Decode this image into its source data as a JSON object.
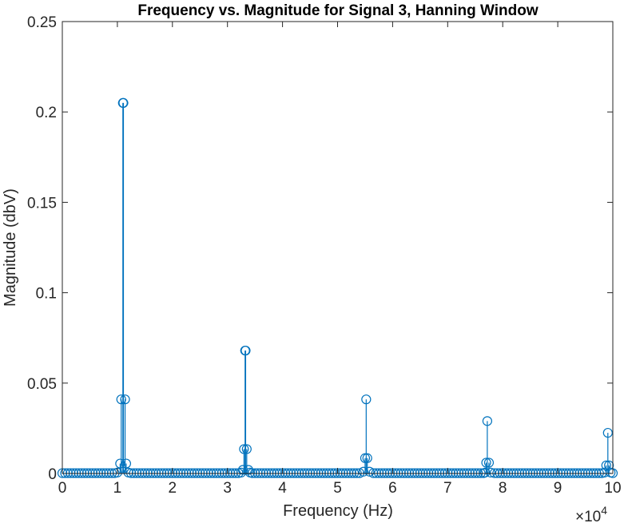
{
  "chart_data": {
    "type": "stem",
    "title": "Frequency vs. Magnitude for Signal 3, Hanning Window",
    "xlabel": "Frequency (Hz)",
    "ylabel": "Magnitude (dbV)",
    "x_exponent_label": "×10",
    "x_exponent_power": "4",
    "xlim": [
      0,
      100000
    ],
    "ylim": [
      0,
      0.25
    ],
    "xticks": [
      0,
      10000,
      20000,
      30000,
      40000,
      50000,
      60000,
      70000,
      80000,
      90000,
      100000
    ],
    "xtick_labels": [
      "0",
      "1",
      "2",
      "3",
      "4",
      "5",
      "6",
      "7",
      "8",
      "9",
      "10"
    ],
    "yticks": [
      0,
      0.05,
      0.1,
      0.15,
      0.2,
      0.25
    ],
    "ytick_labels": [
      "0",
      "0.05",
      "0.1",
      "0.15",
      "0.2",
      "0.25"
    ],
    "grid": false,
    "color": "#0072BD",
    "baseline_spacing": 500,
    "series": [
      {
        "points": [
          [
            10000,
            0.0005
          ],
          [
            10500,
            0.0055
          ],
          [
            10700,
            0.041
          ],
          [
            11000,
            0.205
          ],
          [
            11100,
            0.205
          ],
          [
            11400,
            0.041
          ],
          [
            11600,
            0.0055
          ],
          [
            12000,
            0.0005
          ],
          [
            32500,
            0.0005
          ],
          [
            32800,
            0.002
          ],
          [
            33000,
            0.0135
          ],
          [
            33200,
            0.068
          ],
          [
            33300,
            0.068
          ],
          [
            33500,
            0.0135
          ],
          [
            33800,
            0.002
          ],
          [
            34100,
            0.0005
          ],
          [
            54700,
            0.001
          ],
          [
            55000,
            0.0085
          ],
          [
            55200,
            0.041
          ],
          [
            55400,
            0.0085
          ],
          [
            55800,
            0.001
          ],
          [
            76800,
            0.0005
          ],
          [
            77000,
            0.006
          ],
          [
            77200,
            0.029
          ],
          [
            77500,
            0.006
          ],
          [
            77800,
            0.0005
          ],
          [
            98500,
            0.0005
          ],
          [
            98800,
            0.0045
          ],
          [
            99100,
            0.0225
          ],
          [
            99300,
            0.0045
          ],
          [
            99600,
            0.0005
          ]
        ]
      }
    ]
  }
}
